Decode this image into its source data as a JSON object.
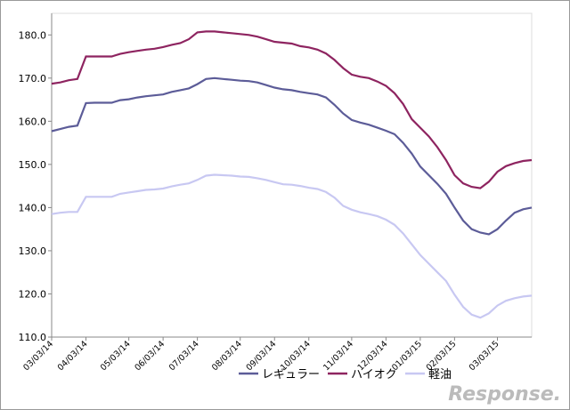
{
  "chart_data": {
    "type": "line",
    "categories": [
      "03/03/14",
      null,
      null,
      null,
      "04/03/14",
      null,
      null,
      null,
      null,
      "05/03/14",
      null,
      null,
      null,
      "06/03/14",
      null,
      null,
      null,
      "07/03/14",
      null,
      null,
      null,
      null,
      "08/03/14",
      null,
      null,
      null,
      "09/03/14",
      null,
      null,
      null,
      "10/03/14",
      null,
      null,
      null,
      null,
      "11/03/14",
      null,
      null,
      null,
      "12/03/14",
      null,
      null,
      null,
      "01/03/15",
      null,
      null,
      null,
      "02/03/15",
      null,
      null,
      null,
      null,
      "03/03/15",
      null,
      null,
      null,
      null
    ],
    "series": [
      {
        "name": "レギュラー",
        "color": "#5c5c98",
        "values": [
          157.7,
          158.2,
          158.7,
          159,
          164.2,
          164.3,
          164.3,
          164.3,
          164.9,
          165.1,
          165.5,
          165.8,
          166,
          166.2,
          166.8,
          167.2,
          167.6,
          168.6,
          169.8,
          170,
          169.8,
          169.6,
          169.4,
          169.3,
          169,
          168.4,
          167.8,
          167.4,
          167.2,
          166.8,
          166.5,
          166.2,
          165.5,
          163.8,
          161.8,
          160.3,
          159.7,
          159.2,
          158.5,
          157.8,
          157,
          155,
          152.5,
          149.5,
          147.5,
          145.5,
          143.2,
          140,
          137,
          135,
          134.2,
          133.8,
          135,
          137,
          138.8,
          139.6,
          140
        ]
      },
      {
        "name": "ハイオク",
        "color": "#8e2460",
        "values": [
          168.7,
          169,
          169.5,
          169.8,
          175,
          175,
          175,
          175,
          175.6,
          176,
          176.3,
          176.6,
          176.8,
          177.2,
          177.7,
          178.1,
          179,
          180.6,
          180.8,
          180.8,
          180.6,
          180.4,
          180.2,
          180,
          179.6,
          179,
          178.4,
          178.2,
          178,
          177.4,
          177.1,
          176.6,
          175.7,
          174.2,
          172.3,
          170.8,
          170.3,
          170,
          169.2,
          168.2,
          166.5,
          164,
          160.5,
          158.5,
          156.5,
          154,
          151,
          147.5,
          145.6,
          144.8,
          144.5,
          146,
          148.3,
          149.6,
          150.3,
          150.8,
          151
        ]
      },
      {
        "name": "軽油",
        "color": "#c8c8f2",
        "values": [
          138.5,
          138.8,
          139,
          139,
          142.5,
          142.5,
          142.5,
          142.5,
          143.2,
          143.5,
          143.8,
          144.1,
          144.2,
          144.4,
          144.9,
          145.3,
          145.6,
          146.4,
          147.4,
          147.6,
          147.5,
          147.4,
          147.2,
          147.1,
          146.8,
          146.4,
          145.9,
          145.4,
          145.3,
          145,
          144.6,
          144.3,
          143.6,
          142.3,
          140.4,
          139.5,
          138.9,
          138.5,
          138,
          137.2,
          136,
          134,
          131.5,
          129,
          127,
          125,
          123,
          119.8,
          117,
          115.2,
          114.5,
          115.5,
          117.3,
          118.4,
          119,
          119.4,
          119.6
        ]
      }
    ],
    "ylim": [
      110,
      185
    ],
    "yticks": [
      {
        "value": 110,
        "label": "110.0"
      },
      {
        "value": 120,
        "label": "120.0"
      },
      {
        "value": 130,
        "label": "130.0"
      },
      {
        "value": 140,
        "label": "140.0"
      },
      {
        "value": 150,
        "label": "150.0"
      },
      {
        "value": 160,
        "label": "160.0"
      },
      {
        "value": 170,
        "label": "170.0"
      },
      {
        "value": 180,
        "label": "180.0"
      }
    ],
    "legend": "bottom",
    "watermark": "Response."
  }
}
